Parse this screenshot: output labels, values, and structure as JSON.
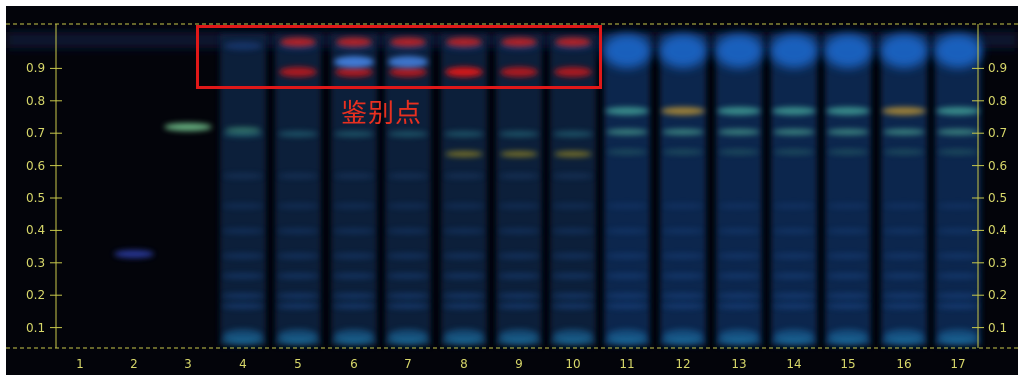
{
  "image": {
    "kind": "TLC plate photographed under UV light",
    "annotation_label": "鉴别点",
    "lane_numbers": [
      "1",
      "2",
      "3",
      "4",
      "5",
      "6",
      "7",
      "8",
      "9",
      "10",
      "11",
      "12",
      "13",
      "14",
      "15",
      "16",
      "17"
    ],
    "rf_ticks": [
      "0.9",
      "0.8",
      "0.7",
      "0.6",
      "0.5",
      "0.4",
      "0.3",
      "0.2",
      "0.1"
    ],
    "colors": {
      "background": "#03040a",
      "guide_lines": "#c8c84a",
      "axis_text": "#d8d86a",
      "annotation": "#e01818"
    }
  }
}
